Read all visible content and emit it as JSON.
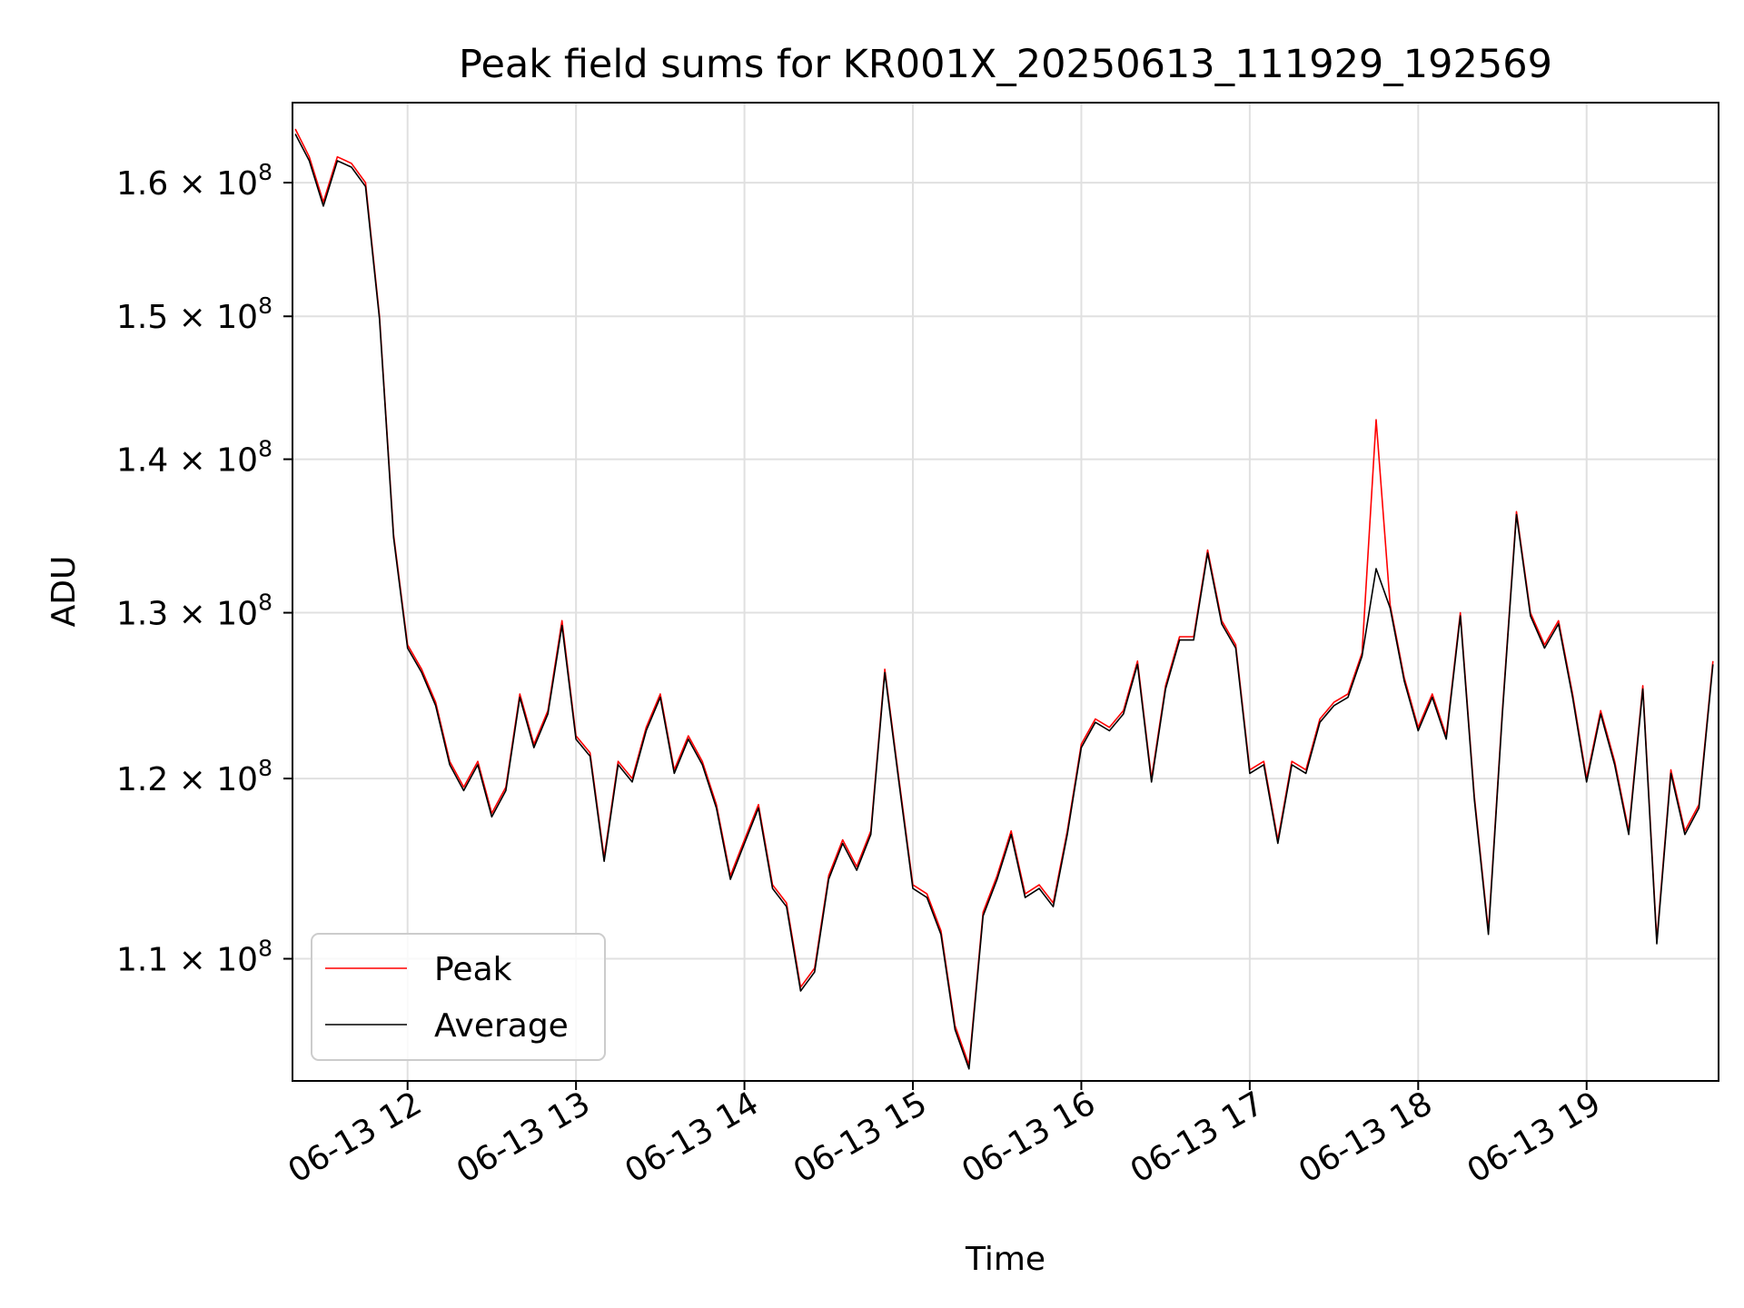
{
  "chart_data": {
    "type": "line",
    "title": "Peak field sums for KR001X_20250613_111929_192569",
    "xlabel": "Time",
    "ylabel": "ADU",
    "grid": true,
    "legend_position": "lower-left",
    "x_tick_labels": [
      "06-13 12",
      "06-13 13",
      "06-13 14",
      "06-13 15",
      "06-13 16",
      "06-13 17",
      "06-13 18",
      "06-13 19"
    ],
    "y_tick_labels": [
      {
        "mantissa": "1.1",
        "exp": "8"
      },
      {
        "mantissa": "1.2",
        "exp": "8"
      },
      {
        "mantissa": "1.3",
        "exp": "8"
      },
      {
        "mantissa": "1.4",
        "exp": "8"
      },
      {
        "mantissa": "1.5",
        "exp": "8"
      },
      {
        "mantissa": "1.6",
        "exp": "8"
      }
    ],
    "y_ticks": [
      110000000,
      120000000,
      130000000,
      140000000,
      150000000,
      160000000
    ],
    "y_scale": "log",
    "y_range": [
      103700000,
      166300000
    ],
    "x_range": [
      "06-13 11:19",
      "06-13 19:47"
    ],
    "x_ticks": [
      "06-13 12:00",
      "06-13 13:00",
      "06-13 14:00",
      "06-13 15:00",
      "06-13 16:00",
      "06-13 17:00",
      "06-13 18:00",
      "06-13 19:00"
    ],
    "x": [
      "06-13 11:20",
      "06-13 11:25",
      "06-13 11:30",
      "06-13 11:35",
      "06-13 11:40",
      "06-13 11:45",
      "06-13 11:50",
      "06-13 11:55",
      "06-13 12:00",
      "06-13 12:05",
      "06-13 12:10",
      "06-13 12:15",
      "06-13 12:20",
      "06-13 12:25",
      "06-13 12:30",
      "06-13 12:35",
      "06-13 12:40",
      "06-13 12:45",
      "06-13 12:50",
      "06-13 12:55",
      "06-13 13:00",
      "06-13 13:05",
      "06-13 13:10",
      "06-13 13:15",
      "06-13 13:20",
      "06-13 13:25",
      "06-13 13:30",
      "06-13 13:35",
      "06-13 13:40",
      "06-13 13:45",
      "06-13 13:50",
      "06-13 13:55",
      "06-13 14:00",
      "06-13 14:05",
      "06-13 14:10",
      "06-13 14:15",
      "06-13 14:20",
      "06-13 14:25",
      "06-13 14:30",
      "06-13 14:35",
      "06-13 14:40",
      "06-13 14:45",
      "06-13 14:50",
      "06-13 14:55",
      "06-13 15:00",
      "06-13 15:05",
      "06-13 15:10",
      "06-13 15:15",
      "06-13 15:20",
      "06-13 15:25",
      "06-13 15:30",
      "06-13 15:35",
      "06-13 15:40",
      "06-13 15:45",
      "06-13 15:50",
      "06-13 15:55",
      "06-13 16:00",
      "06-13 16:05",
      "06-13 16:10",
      "06-13 16:15",
      "06-13 16:20",
      "06-13 16:25",
      "06-13 16:30",
      "06-13 16:35",
      "06-13 16:40",
      "06-13 16:45",
      "06-13 16:50",
      "06-13 16:55",
      "06-13 17:00",
      "06-13 17:05",
      "06-13 17:10",
      "06-13 17:15",
      "06-13 17:20",
      "06-13 17:25",
      "06-13 17:30",
      "06-13 17:35",
      "06-13 17:40",
      "06-13 17:45",
      "06-13 17:50",
      "06-13 17:55",
      "06-13 18:00",
      "06-13 18:05",
      "06-13 18:10",
      "06-13 18:15",
      "06-13 18:20",
      "06-13 18:25",
      "06-13 18:30",
      "06-13 18:35",
      "06-13 18:40",
      "06-13 18:45",
      "06-13 18:50",
      "06-13 18:55",
      "06-13 19:00",
      "06-13 19:05",
      "06-13 19:10",
      "06-13 19:15",
      "06-13 19:20",
      "06-13 19:25",
      "06-13 19:30",
      "06-13 19:35",
      "06-13 19:40",
      "06-13 19:45"
    ],
    "series": [
      {
        "name": "Peak",
        "color": "#ff0000",
        "values": [
          164200000,
          162000000,
          158500000,
          162000000,
          161500000,
          160000000,
          150000000,
          135000000,
          128000000,
          126500000,
          124500000,
          121000000,
          119500000,
          121000000,
          118000000,
          119500000,
          125000000,
          122000000,
          124000000,
          129500000,
          122500000,
          121500000,
          115500000,
          121000000,
          120000000,
          123000000,
          125000000,
          120500000,
          122500000,
          121000000,
          118500000,
          114500000,
          116500000,
          118500000,
          114000000,
          113000000,
          108500000,
          109500000,
          114500000,
          116500000,
          115000000,
          117000000,
          126500000,
          120000000,
          114000000,
          113500000,
          111500000,
          106500000,
          104500000,
          112500000,
          114500000,
          117000000,
          113500000,
          114000000,
          113000000,
          117000000,
          122000000,
          123500000,
          123000000,
          124000000,
          127000000,
          120000000,
          125500000,
          128500000,
          128500000,
          134000000,
          129500000,
          128000000,
          120500000,
          121000000,
          116500000,
          121000000,
          120500000,
          123500000,
          124500000,
          125000000,
          127500000,
          142700000,
          130500000,
          126000000,
          123000000,
          125000000,
          122500000,
          130000000,
          119000000,
          111500000,
          124000000,
          136500000,
          130000000,
          128000000,
          129500000,
          125000000,
          120000000,
          124000000,
          121000000,
          117000000,
          125500000,
          111000000,
          120500000,
          117000000,
          118500000,
          127000000
        ]
      },
      {
        "name": "Average",
        "color": "#000000",
        "values": [
          163800000,
          161700000,
          158200000,
          161700000,
          161200000,
          159700000,
          149800000,
          134800000,
          127800000,
          126300000,
          124300000,
          120800000,
          119300000,
          120800000,
          117800000,
          119300000,
          124800000,
          121800000,
          123800000,
          129200000,
          122300000,
          121300000,
          115300000,
          120800000,
          119800000,
          122800000,
          124800000,
          120300000,
          122300000,
          120800000,
          118300000,
          114300000,
          116300000,
          118300000,
          113800000,
          112800000,
          108300000,
          109300000,
          114300000,
          116300000,
          114800000,
          116800000,
          126300000,
          119800000,
          113800000,
          113300000,
          111300000,
          106300000,
          104300000,
          112300000,
          114300000,
          116800000,
          113300000,
          113800000,
          112800000,
          116800000,
          121800000,
          123300000,
          122800000,
          123800000,
          126800000,
          119800000,
          125300000,
          128300000,
          128300000,
          133800000,
          129300000,
          127800000,
          120300000,
          120800000,
          116300000,
          120800000,
          120300000,
          123300000,
          124300000,
          124800000,
          127300000,
          132800000,
          130300000,
          125800000,
          122800000,
          124800000,
          122300000,
          129800000,
          118800000,
          111300000,
          123800000,
          136300000,
          129800000,
          127800000,
          129300000,
          124800000,
          119800000,
          123800000,
          120800000,
          116800000,
          125300000,
          110800000,
          120300000,
          116800000,
          118300000,
          126800000
        ]
      }
    ]
  }
}
